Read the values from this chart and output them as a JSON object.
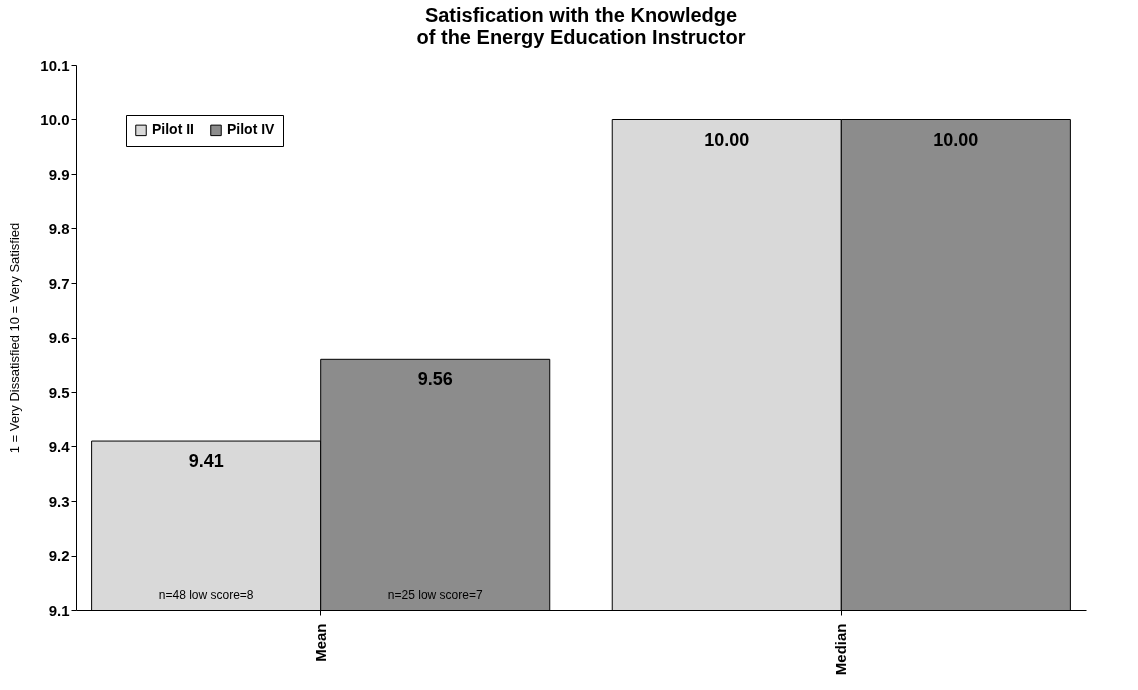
{
  "chart_data": {
    "type": "bar",
    "title": "Satisfication with the Knowledge of the Energy Education Instructor",
    "ylabel": "1 = Very Dissatisfied     10 = Very Satisfied",
    "categories": [
      "Mean",
      "Median"
    ],
    "series": [
      {
        "name": "Pilot II",
        "color": "#d9d9d9",
        "values": [
          9.41,
          10
        ],
        "value_labels": [
          "9.41",
          "10.00"
        ]
      },
      {
        "name": "Pilot IV",
        "color": "#8c8c8c",
        "values": [
          9.56,
          10
        ],
        "value_labels": [
          "9.56",
          "10.00"
        ]
      }
    ],
    "ylim": [
      9.1,
      10.1
    ],
    "yticks": [
      {
        "value": 9.1,
        "label": "9.1"
      },
      {
        "value": 9.2,
        "label": "9.2"
      },
      {
        "value": 9.3,
        "label": "9.3"
      },
      {
        "value": 9.4,
        "label": "9.4"
      },
      {
        "value": 9.5,
        "label": "9.5"
      },
      {
        "value": 9.6,
        "label": "9.6"
      },
      {
        "value": 9.7,
        "label": "9.7"
      },
      {
        "value": 9.8,
        "label": "9.8"
      },
      {
        "value": 9.9,
        "label": "9.9"
      },
      {
        "value": 10,
        "label": "10.0"
      },
      {
        "value": 10.1,
        "label": "10.1"
      }
    ],
    "annotations": [
      "n=48  low score=8",
      "n=25  low score=7"
    ],
    "legend": "top left",
    "grid": false
  }
}
